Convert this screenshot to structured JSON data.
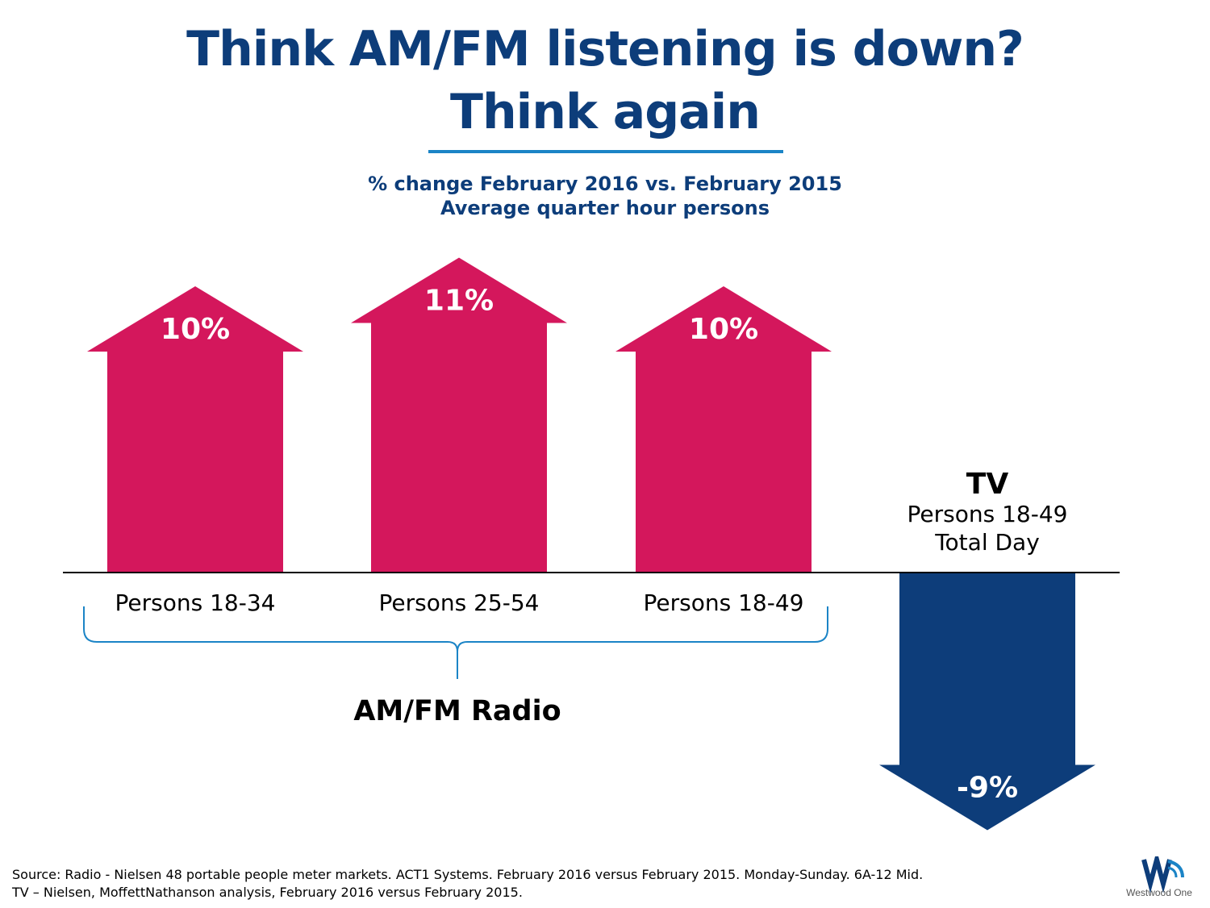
{
  "title": {
    "line1": "Think AM/FM listening is down?",
    "line2": "Think again"
  },
  "subtitle": {
    "line1": "% change February 2016 vs. February 2015",
    "line2": "Average quarter hour persons"
  },
  "chart_data": {
    "type": "bar",
    "categories": [
      "Persons 18-34",
      "Persons 25-54",
      "Persons 18-49",
      "TV"
    ],
    "values": [
      10,
      11,
      10,
      -9
    ],
    "value_labels": [
      "10%",
      "11%",
      "10%",
      "-9%"
    ],
    "group_label": "AM/FM Radio",
    "tv_label": {
      "title": "TV",
      "line1": "Persons 18-49",
      "line2": "Total Day"
    },
    "colors": {
      "radio": "#d4175c",
      "tv": "#0d3d7a"
    },
    "grid": false
  },
  "footer": {
    "line1": "Source: Radio - Nielsen 48 portable people meter markets. ACT1 Systems. February 2016 versus February 2015. Monday-Sunday. 6A-12 Mid.",
    "line2": "TV – Nielsen, MoffettNathanson analysis, February 2016 versus February 2015."
  },
  "logo": {
    "text": "Westwood One",
    "icon": "westwood-one-logo"
  }
}
